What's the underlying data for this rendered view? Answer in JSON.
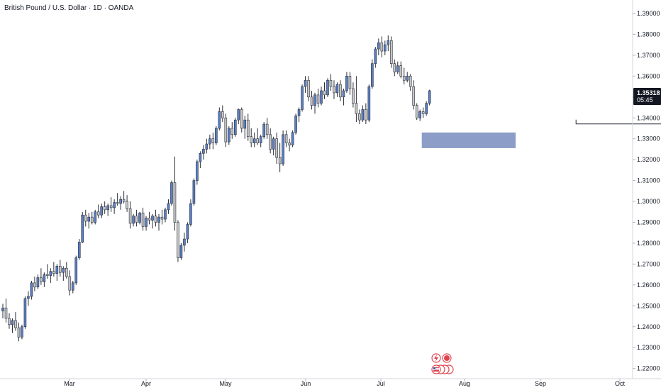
{
  "chart_data": {
    "type": "candlestick",
    "title": "British Pound / U.S. Dollar · 1D · OANDA",
    "y_ticks": [
      "1.39000",
      "1.38000",
      "1.37000",
      "1.36000",
      "1.35000",
      "1.34000",
      "1.33000",
      "1.32000",
      "1.31000",
      "1.30000",
      "1.29000",
      "1.28000",
      "1.27000",
      "1.26000",
      "1.25000",
      "1.24000",
      "1.23000",
      "1.22000"
    ],
    "x_ticks": [
      "Mar",
      "Apr",
      "May",
      "Jun",
      "Jul",
      "Aug",
      "Sep",
      "Oct"
    ],
    "last_price": "1.35318",
    "countdown": "05:45",
    "ylim": [
      1.2195,
      1.3945
    ],
    "colors": {
      "up": "#5b7fc4",
      "down": "#c8c8c8",
      "outline": "#2a2e39",
      "zone": "#8c9dc8",
      "tag": "#131722"
    },
    "zone": {
      "low": 1.3255,
      "high": 1.333,
      "start_index": 132
    },
    "double_bottom_line": {
      "start_index": 180,
      "end_index": 211,
      "price": 1.3371
    },
    "events": [
      {
        "icon": "lightning-icon",
        "color": "#e0434f"
      },
      {
        "icon": "flag-us-icon",
        "color": "#e0434f",
        "label": "USD"
      }
    ],
    "candles": [
      [
        1.2475,
        1.251,
        1.244,
        1.249
      ],
      [
        1.249,
        1.2535,
        1.242,
        1.244
      ],
      [
        1.244,
        1.2465,
        1.239,
        1.241
      ],
      [
        1.241,
        1.244,
        1.237,
        1.243
      ],
      [
        1.243,
        1.247,
        1.238,
        1.2395
      ],
      [
        1.2395,
        1.242,
        1.233,
        1.235
      ],
      [
        1.235,
        1.241,
        1.234,
        1.24
      ],
      [
        1.24,
        1.2545,
        1.239,
        1.2535
      ],
      [
        1.2535,
        1.257,
        1.25,
        1.2545
      ],
      [
        1.2545,
        1.262,
        1.253,
        1.261
      ],
      [
        1.261,
        1.264,
        1.257,
        1.259
      ],
      [
        1.259,
        1.265,
        1.258,
        1.2635
      ],
      [
        1.2635,
        1.268,
        1.26,
        1.2615
      ],
      [
        1.2615,
        1.266,
        1.259,
        1.265
      ],
      [
        1.265,
        1.27,
        1.263,
        1.2645
      ],
      [
        1.2645,
        1.268,
        1.261,
        1.2665
      ],
      [
        1.2665,
        1.271,
        1.264,
        1.2655
      ],
      [
        1.2655,
        1.27,
        1.262,
        1.269
      ],
      [
        1.269,
        1.272,
        1.264,
        1.266
      ],
      [
        1.266,
        1.269,
        1.262,
        1.268
      ],
      [
        1.268,
        1.271,
        1.263,
        1.264
      ],
      [
        1.264,
        1.267,
        1.255,
        1.2575
      ],
      [
        1.2575,
        1.262,
        1.256,
        1.261
      ],
      [
        1.261,
        1.274,
        1.26,
        1.273
      ],
      [
        1.273,
        1.282,
        1.272,
        1.2805
      ],
      [
        1.2805,
        1.295,
        1.28,
        1.2935
      ],
      [
        1.2935,
        1.296,
        1.288,
        1.2905
      ],
      [
        1.2905,
        1.2945,
        1.287,
        1.2925
      ],
      [
        1.2925,
        1.295,
        1.289,
        1.29
      ],
      [
        1.29,
        1.296,
        1.289,
        1.295
      ],
      [
        1.295,
        1.2985,
        1.292,
        1.2935
      ],
      [
        1.2935,
        1.299,
        1.292,
        1.2975
      ],
      [
        1.2975,
        1.3,
        1.294,
        1.296
      ],
      [
        1.296,
        1.299,
        1.293,
        1.298
      ],
      [
        1.298,
        1.302,
        1.295,
        1.297
      ],
      [
        1.297,
        1.301,
        1.294,
        1.2995
      ],
      [
        1.2995,
        1.304,
        1.298,
        1.299
      ],
      [
        1.299,
        1.3025,
        1.296,
        1.301
      ],
      [
        1.301,
        1.305,
        1.299,
        1.3
      ],
      [
        1.3,
        1.303,
        1.295,
        1.2965
      ],
      [
        1.2965,
        1.3,
        1.287,
        1.2895
      ],
      [
        1.2895,
        1.294,
        1.288,
        1.293
      ],
      [
        1.293,
        1.296,
        1.288,
        1.29
      ],
      [
        1.29,
        1.295,
        1.289,
        1.2945
      ],
      [
        1.2945,
        1.297,
        1.286,
        1.288
      ],
      [
        1.288,
        1.293,
        1.286,
        1.292
      ],
      [
        1.292,
        1.295,
        1.289,
        1.291
      ],
      [
        1.291,
        1.294,
        1.287,
        1.293
      ],
      [
        1.293,
        1.296,
        1.288,
        1.29
      ],
      [
        1.29,
        1.294,
        1.286,
        1.2925
      ],
      [
        1.2925,
        1.296,
        1.289,
        1.2915
      ],
      [
        1.2915,
        1.297,
        1.29,
        1.296
      ],
      [
        1.296,
        1.301,
        1.294,
        1.299
      ],
      [
        1.299,
        1.31,
        1.298,
        1.309
      ],
      [
        1.309,
        1.3215,
        1.286,
        1.29
      ],
      [
        1.29,
        1.291,
        1.271,
        1.273
      ],
      [
        1.273,
        1.28,
        1.272,
        1.279
      ],
      [
        1.279,
        1.285,
        1.276,
        1.282
      ],
      [
        1.282,
        1.29,
        1.28,
        1.289
      ],
      [
        1.289,
        1.301,
        1.288,
        1.299
      ],
      [
        1.299,
        1.311,
        1.298,
        1.31
      ],
      [
        1.31,
        1.32,
        1.308,
        1.319
      ],
      [
        1.319,
        1.324,
        1.316,
        1.323
      ],
      [
        1.323,
        1.327,
        1.32,
        1.325
      ],
      [
        1.325,
        1.33,
        1.323,
        1.3275
      ],
      [
        1.3275,
        1.332,
        1.325,
        1.33
      ],
      [
        1.33,
        1.333,
        1.325,
        1.328
      ],
      [
        1.328,
        1.336,
        1.327,
        1.335
      ],
      [
        1.335,
        1.345,
        1.334,
        1.343
      ],
      [
        1.343,
        1.346,
        1.338,
        1.34
      ],
      [
        1.34,
        1.342,
        1.326,
        1.3285
      ],
      [
        1.3285,
        1.336,
        1.327,
        1.335
      ],
      [
        1.335,
        1.338,
        1.33,
        1.332
      ],
      [
        1.332,
        1.34,
        1.331,
        1.339
      ],
      [
        1.339,
        1.3445,
        1.337,
        1.344
      ],
      [
        1.344,
        1.345,
        1.333,
        1.335
      ],
      [
        1.335,
        1.341,
        1.33,
        1.339
      ],
      [
        1.339,
        1.342,
        1.329,
        1.331
      ],
      [
        1.331,
        1.335,
        1.326,
        1.328
      ],
      [
        1.328,
        1.333,
        1.326,
        1.33
      ],
      [
        1.33,
        1.335,
        1.327,
        1.328
      ],
      [
        1.328,
        1.332,
        1.326,
        1.331
      ],
      [
        1.331,
        1.338,
        1.33,
        1.337
      ],
      [
        1.337,
        1.34,
        1.33,
        1.332
      ],
      [
        1.332,
        1.335,
        1.323,
        1.325
      ],
      [
        1.325,
        1.331,
        1.322,
        1.33
      ],
      [
        1.33,
        1.333,
        1.318,
        1.321
      ],
      [
        1.321,
        1.328,
        1.314,
        1.318
      ],
      [
        1.318,
        1.334,
        1.317,
        1.332
      ],
      [
        1.332,
        1.334,
        1.326,
        1.328
      ],
      [
        1.328,
        1.33,
        1.324,
        1.327
      ],
      [
        1.327,
        1.334,
        1.326,
        1.333
      ],
      [
        1.333,
        1.342,
        1.332,
        1.341
      ],
      [
        1.341,
        1.345,
        1.338,
        1.344
      ],
      [
        1.344,
        1.356,
        1.343,
        1.355
      ],
      [
        1.355,
        1.36,
        1.352,
        1.358
      ],
      [
        1.358,
        1.36,
        1.348,
        1.35
      ],
      [
        1.35,
        1.353,
        1.344,
        1.346
      ],
      [
        1.346,
        1.352,
        1.342,
        1.351
      ],
      [
        1.351,
        1.354,
        1.345,
        1.347
      ],
      [
        1.347,
        1.355,
        1.346,
        1.353
      ],
      [
        1.353,
        1.357,
        1.349,
        1.351
      ],
      [
        1.351,
        1.359,
        1.35,
        1.358
      ],
      [
        1.358,
        1.361,
        1.353,
        1.355
      ],
      [
        1.355,
        1.358,
        1.349,
        1.352
      ],
      [
        1.352,
        1.357,
        1.35,
        1.356
      ],
      [
        1.356,
        1.358,
        1.348,
        1.35
      ],
      [
        1.35,
        1.354,
        1.346,
        1.353
      ],
      [
        1.353,
        1.362,
        1.352,
        1.36
      ],
      [
        1.36,
        1.362,
        1.351,
        1.354
      ],
      [
        1.354,
        1.357,
        1.345,
        1.347
      ],
      [
        1.347,
        1.36,
        1.338,
        1.342
      ],
      [
        1.342,
        1.344,
        1.337,
        1.339
      ],
      [
        1.339,
        1.346,
        1.338,
        1.344
      ],
      [
        1.344,
        1.347,
        1.337,
        1.339
      ],
      [
        1.339,
        1.356,
        1.338,
        1.355
      ],
      [
        1.355,
        1.368,
        1.354,
        1.366
      ],
      [
        1.366,
        1.374,
        1.364,
        1.373
      ],
      [
        1.373,
        1.378,
        1.37,
        1.376
      ],
      [
        1.376,
        1.379,
        1.369,
        1.372
      ],
      [
        1.372,
        1.377,
        1.37,
        1.375
      ],
      [
        1.375,
        1.3795,
        1.372,
        1.377
      ],
      [
        1.377,
        1.379,
        1.364,
        1.366
      ],
      [
        1.366,
        1.368,
        1.36,
        1.362
      ],
      [
        1.362,
        1.367,
        1.361,
        1.365
      ],
      [
        1.365,
        1.367,
        1.359,
        1.36
      ],
      [
        1.36,
        1.364,
        1.356,
        1.358
      ],
      [
        1.358,
        1.362,
        1.357,
        1.36
      ],
      [
        1.36,
        1.361,
        1.353,
        1.355
      ],
      [
        1.355,
        1.358,
        1.344,
        1.346
      ],
      [
        1.346,
        1.347,
        1.339,
        1.34
      ],
      [
        1.34,
        1.344,
        1.3385,
        1.343
      ],
      [
        1.343,
        1.345,
        1.34,
        1.342
      ],
      [
        1.342,
        1.348,
        1.341,
        1.347
      ],
      [
        1.347,
        1.3535,
        1.346,
        1.353
      ]
    ]
  }
}
